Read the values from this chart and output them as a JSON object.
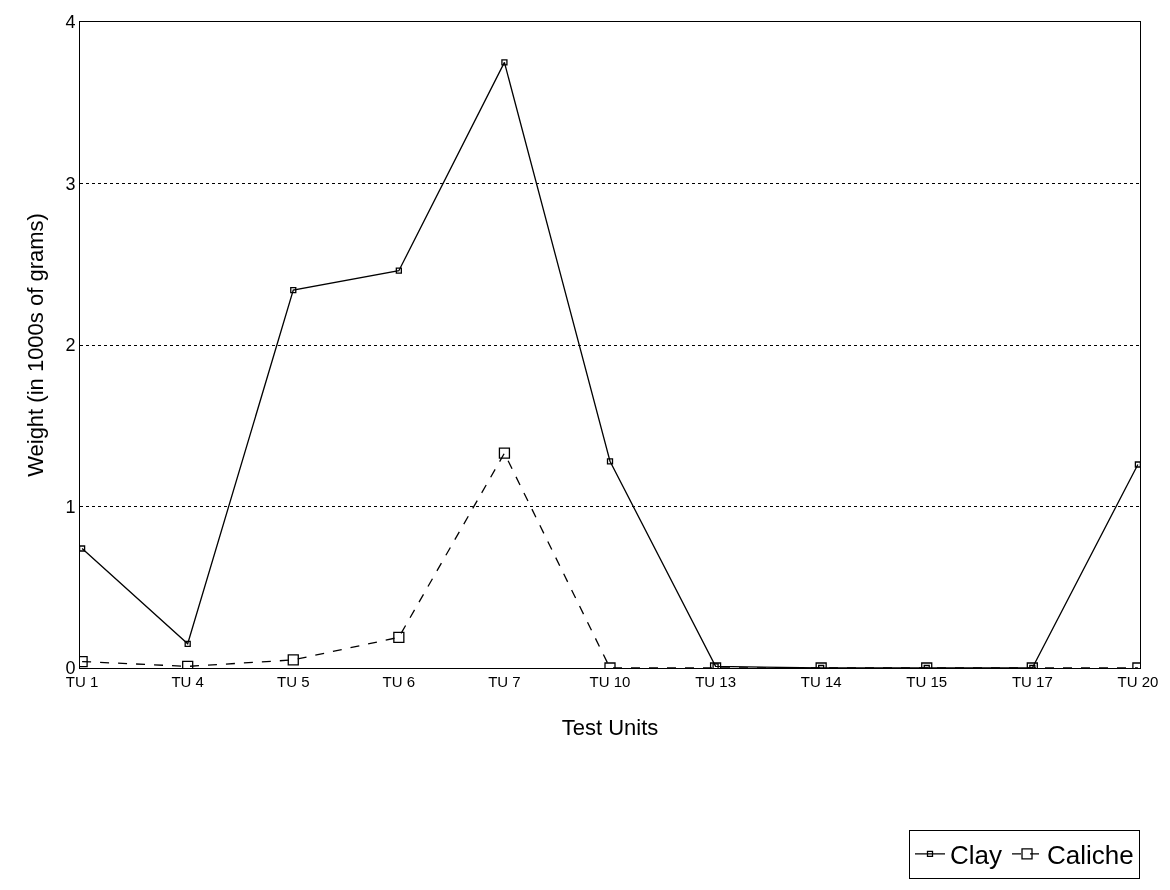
{
  "chart_data": {
    "type": "line",
    "xlabel": "Test Units",
    "ylabel": "Weight (in 1000s of grams)",
    "categories": [
      "TU 1",
      "TU 4",
      "TU 5",
      "TU 6",
      "TU 7",
      "TU 10",
      "TU 13",
      "TU 14",
      "TU 15",
      "TU 17",
      "TU 20"
    ],
    "series": [
      {
        "name": "Clay",
        "color": "#000000",
        "line_style": "solid",
        "values": [
          0.74,
          0.15,
          2.34,
          2.46,
          3.75,
          1.28,
          0.01,
          0,
          0,
          0,
          1.26
        ]
      },
      {
        "name": "Caliche",
        "color": "#000000",
        "line_style": "dashed",
        "values": [
          0.04,
          0.01,
          0.05,
          0.19,
          1.33,
          0,
          0,
          0,
          0,
          0,
          0
        ]
      }
    ],
    "ylim": [
      0,
      4
    ],
    "yticks": [
      0,
      1,
      2,
      3,
      4
    ],
    "grid": "y",
    "legend": "bottom right",
    "marker": "square"
  }
}
